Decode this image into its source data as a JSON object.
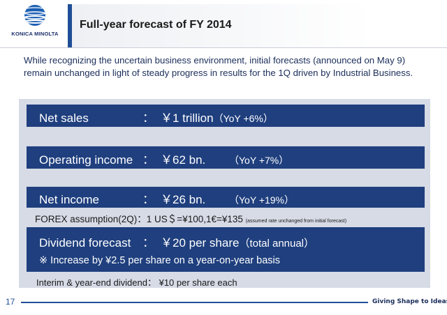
{
  "logo": {
    "text": "KONICA MINOLTA",
    "globe_color": "#1b5fb3"
  },
  "slide": {
    "title": "Full-year forecast of FY 2014",
    "intro": "While recognizing the uncertain business environment, initial forecasts (announced on May 9) remain unchanged in light of steady progress in results for the 1Q driven by Industrial Business."
  },
  "items": {
    "net_sales": {
      "label": "Net sales",
      "colon": "：",
      "value": "￥1 trillion",
      "yoy": "（YoY  +6%）"
    },
    "operating_income": {
      "label": "Operating income",
      "colon": "：",
      "value": "￥62 bn.",
      "yoy": "（YoY  +7%）"
    },
    "net_income": {
      "label": "Net income",
      "colon": "：",
      "value": "￥26 bn.",
      "yoy": "（YoY  +19%）"
    },
    "forex": {
      "text": "FOREX assumption(2Q)：1 US＄=¥100,1€=¥135",
      "note": "(assumed rate unchanged from initial forecast)"
    },
    "dividend": {
      "label": "Dividend forecast",
      "colon": "：",
      "value": "￥20 per share",
      "note": "（total annual）",
      "sub": "※ Increase by ¥2.5 per share on a year-on-year basis"
    },
    "interim": "Interim & year-end dividend：  ¥10 per share each"
  },
  "footer": {
    "page": "17",
    "tagline": "Giving Shape to Ideas"
  },
  "colors": {
    "bar": "#1f3f7e",
    "panel": "#d6dbe6",
    "accent": "#1f4e96"
  }
}
